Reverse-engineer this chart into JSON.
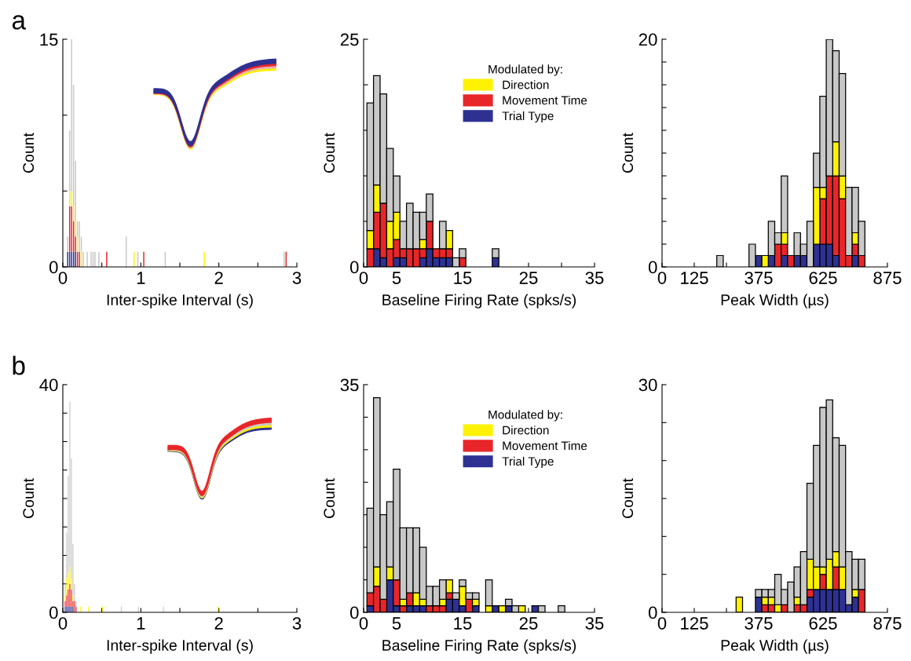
{
  "chart_data": [
    {
      "type": "bar",
      "xlabel": "Inter-spike Interval (s)",
      "ylabel": "Count",
      "annotations": [
        "a"
      ],
      "stacked": true,
      "x": [
        0.0625,
        0.0875,
        0.1125,
        0.1375,
        0.1625,
        0.1875,
        0.2125,
        0.2375,
        0.2625,
        0.3125,
        0.3625,
        0.3875,
        0.4125,
        0.4625,
        0.5625,
        0.8125,
        0.9125,
        0.9625,
        1.0375,
        1.3125,
        1.8125,
        2.8375,
        2.8625
      ],
      "series": [
        {
          "color": "#2e3192",
          "values": [
            1,
            1,
            1,
            1,
            1,
            0,
            0,
            0,
            0,
            0,
            0,
            0,
            0,
            0,
            0,
            0,
            0,
            0,
            0,
            0,
            0,
            0,
            0
          ]
        },
        {
          "color": "#e8262a",
          "values": [
            0,
            3,
            3,
            2,
            1,
            1,
            1,
            0,
            0,
            0,
            0,
            0,
            0,
            0,
            1,
            0,
            0,
            0,
            1,
            0,
            0,
            0,
            1
          ]
        },
        {
          "color": "#fff200",
          "values": [
            0,
            1,
            1,
            1,
            1,
            1,
            0,
            1,
            0,
            0,
            0,
            0,
            0,
            0,
            0,
            0,
            1,
            0,
            0,
            0,
            1,
            0,
            0
          ]
        },
        {
          "color": "#c8c8c8",
          "values": [
            1,
            4,
            10,
            8,
            4,
            1,
            2,
            1,
            1,
            1,
            1,
            1,
            1,
            1,
            0,
            2,
            0,
            1,
            0,
            1,
            0,
            1,
            0
          ]
        }
      ],
      "xlim": [
        0,
        3
      ],
      "xticks": [
        0,
        {
          "value": 0.5,
          "label": null
        },
        1,
        {
          "value": 1.5,
          "label": null
        },
        2,
        {
          "value": 2.5,
          "label": null
        },
        3
      ],
      "ylim": [
        0,
        15
      ],
      "yticks": [
        0,
        {
          "value": 5,
          "label": null
        },
        {
          "value": 10,
          "label": null
        },
        15
      ]
    },
    {
      "type": "bar",
      "xlabel": "Baseline Firing Rate (spks/s)",
      "ylabel": "Count",
      "stacked": true,
      "legend": "top right",
      "legend_title": "Modulated by:",
      "x": [
        1,
        2,
        3,
        4,
        5,
        6,
        7,
        8,
        9,
        10,
        11,
        12,
        13,
        14,
        15,
        16,
        17,
        18,
        19,
        20
      ],
      "series": [
        {
          "name": "Trial Type",
          "color": "#2e3192",
          "values": [
            0,
            2,
            1,
            0,
            1,
            1,
            0,
            0,
            1,
            2,
            1,
            1,
            1,
            0,
            0,
            0,
            0,
            0,
            0,
            1
          ]
        },
        {
          "name": "Movement Time",
          "color": "#e8262a",
          "values": [
            2,
            4,
            6,
            2,
            2,
            1,
            2,
            2,
            1,
            3,
            1,
            1,
            1,
            0,
            1,
            0,
            0,
            0,
            0,
            0
          ]
        },
        {
          "name": "Direction",
          "color": "#fff200",
          "values": [
            2,
            3,
            0,
            3,
            3,
            0,
            0,
            0,
            1,
            0,
            0,
            0,
            2,
            0,
            0,
            0,
            0,
            0,
            0,
            0
          ]
        },
        {
          "color": "#c8c8c8",
          "values": [
            14,
            12,
            12,
            8,
            4,
            3,
            5,
            4,
            3,
            3,
            0,
            3,
            0,
            1,
            1,
            0,
            0,
            0,
            0,
            1
          ]
        }
      ],
      "xlim": [
        0,
        35
      ],
      "xticks": [
        0,
        5,
        {
          "value": 10,
          "label": null
        },
        15,
        {
          "value": 20,
          "label": null
        },
        25,
        {
          "value": 30,
          "label": null
        },
        35
      ],
      "ylim": [
        0,
        25
      ],
      "yticks": [
        0,
        {
          "value": 5,
          "label": null
        },
        {
          "value": 10,
          "label": null
        },
        {
          "value": 15,
          "label": null
        },
        {
          "value": 20,
          "label": null
        },
        25
      ]
    },
    {
      "type": "bar",
      "xlabel": "Peak Width (µs)",
      "ylabel": "Count",
      "stacked": true,
      "x": [
        225,
        250,
        275,
        300,
        325,
        350,
        375,
        400,
        425,
        450,
        475,
        500,
        525,
        550,
        575,
        600,
        625,
        650,
        675,
        700,
        725,
        750,
        775
      ],
      "series": [
        {
          "color": "#2e3192",
          "values": [
            0,
            0,
            0,
            0,
            0,
            0,
            1,
            0,
            1,
            0,
            1,
            0,
            1,
            1,
            0,
            2,
            2,
            2,
            1,
            0,
            0,
            1,
            0
          ]
        },
        {
          "color": "#e8262a",
          "values": [
            0,
            0,
            0,
            0,
            0,
            0,
            0,
            0,
            0,
            2,
            1,
            1,
            0,
            0,
            0,
            0,
            4,
            6,
            7,
            6,
            1,
            1,
            1
          ]
        },
        {
          "color": "#fff200",
          "values": [
            0,
            0,
            0,
            0,
            0,
            0,
            0,
            1,
            0,
            0,
            1,
            0,
            0,
            0,
            0,
            5,
            1,
            0,
            3,
            2,
            0,
            1,
            0
          ]
        },
        {
          "color": "#c8c8c8",
          "values": [
            1,
            0,
            0,
            0,
            0,
            2,
            0,
            0,
            3,
            1,
            5,
            0,
            2,
            1,
            4,
            3,
            8,
            12,
            8,
            9,
            6,
            4,
            3
          ]
        }
      ],
      "xlim": [
        0,
        875
      ],
      "xticks": [
        0,
        125,
        {
          "value": 250,
          "label": null
        },
        375,
        {
          "value": 500,
          "label": null
        },
        625,
        {
          "value": 750,
          "label": null
        },
        875
      ],
      "ylim": [
        0,
        20
      ],
      "yticks": [
        0,
        {
          "value": 2,
          "label": null
        },
        {
          "value": 4,
          "label": null
        },
        {
          "value": 6,
          "label": null
        },
        {
          "value": 8,
          "label": null
        },
        {
          "value": 10,
          "label": null
        },
        {
          "value": 12,
          "label": null
        },
        {
          "value": 14,
          "label": null
        },
        {
          "value": 16,
          "label": null
        },
        {
          "value": 18,
          "label": null
        },
        20
      ]
    },
    {
      "type": "bar",
      "xlabel": "Inter-spike Interval (s)",
      "ylabel": "Count",
      "annotations": [
        "b"
      ],
      "stacked": true,
      "x": [
        0.03,
        0.05,
        0.07,
        0.09,
        0.11,
        0.13,
        0.15,
        0.17,
        0.23,
        0.33,
        0.51,
        0.75,
        0.97,
        1.29,
        1.99
      ],
      "series": [
        {
          "color": "#2e3192",
          "values": [
            1,
            1,
            1,
            1,
            1,
            1,
            0,
            0,
            0,
            0,
            0,
            0,
            0,
            0,
            0
          ]
        },
        {
          "color": "#e8262a",
          "values": [
            1,
            2,
            3,
            4,
            3,
            1,
            2,
            1,
            0,
            0,
            0,
            0,
            0,
            0,
            0
          ]
        },
        {
          "color": "#fff200",
          "values": [
            1,
            3,
            3,
            3,
            2,
            1,
            0,
            0,
            1,
            1,
            1,
            0,
            0,
            0,
            1
          ]
        },
        {
          "color": "#c8c8c8",
          "values": [
            2,
            8,
            17,
            29,
            21,
            9,
            3,
            1,
            0,
            0,
            0,
            1,
            1,
            1,
            0
          ]
        }
      ],
      "xlim": [
        0,
        3
      ],
      "xticks": [
        0,
        {
          "value": 0.5,
          "label": null
        },
        1,
        {
          "value": 1.5,
          "label": null
        },
        2,
        {
          "value": 2.5,
          "label": null
        },
        3
      ],
      "ylim": [
        0,
        40
      ],
      "yticks": [
        0,
        {
          "value": 5,
          "label": null
        },
        {
          "value": 10,
          "label": null
        },
        {
          "value": 15,
          "label": null
        },
        {
          "value": 20,
          "label": null
        },
        {
          "value": 25,
          "label": null
        },
        {
          "value": 30,
          "label": null
        },
        {
          "value": 35,
          "label": null
        },
        40
      ]
    },
    {
      "type": "bar",
      "xlabel": "Baseline Firing Rate (spks/s)",
      "ylabel": "Count",
      "stacked": true,
      "legend": "top right",
      "legend_title": "Modulated by:",
      "x": [
        1,
        2,
        3,
        4,
        5,
        6,
        7,
        8,
        9,
        10,
        11,
        12,
        13,
        14,
        15,
        16,
        17,
        18,
        19,
        20,
        21,
        22,
        23,
        24,
        25,
        26,
        27,
        28,
        29,
        30
      ],
      "series": [
        {
          "name": "Trial Type",
          "color": "#2e3192",
          "values": [
            1,
            0,
            0,
            5,
            1,
            0,
            1,
            1,
            1,
            0,
            0,
            0,
            2,
            2,
            1,
            0,
            1,
            0,
            0,
            1,
            0,
            1,
            0,
            0,
            0,
            1,
            0,
            0,
            0,
            0
          ]
        },
        {
          "name": "Movement Time",
          "color": "#e8262a",
          "values": [
            2,
            4,
            2,
            0,
            4,
            1,
            2,
            0,
            0,
            1,
            1,
            1,
            1,
            0,
            0,
            2,
            0,
            0,
            0,
            0,
            0,
            0,
            0,
            0,
            0,
            0,
            0,
            0,
            0,
            0
          ]
        },
        {
          "name": "Direction",
          "color": "#fff200",
          "values": [
            0,
            3,
            0,
            2,
            0,
            1,
            0,
            2,
            1,
            0,
            0,
            1,
            2,
            0,
            3,
            0,
            1,
            0,
            1,
            0,
            1,
            0,
            0,
            1,
            0,
            0,
            0,
            0,
            0,
            0
          ]
        },
        {
          "color": "#c8c8c8",
          "values": [
            13,
            26,
            13,
            10,
            17,
            11,
            10,
            10,
            8,
            3,
            3,
            3,
            0,
            1,
            1,
            1,
            1,
            0,
            4,
            0,
            0,
            1,
            1,
            0,
            0,
            0,
            1,
            0,
            0,
            1
          ]
        }
      ],
      "xlim": [
        0,
        35
      ],
      "xticks": [
        0,
        5,
        {
          "value": 10,
          "label": null
        },
        15,
        {
          "value": 20,
          "label": null
        },
        25,
        {
          "value": 30,
          "label": null
        },
        35
      ],
      "ylim": [
        0,
        35
      ],
      "yticks": [
        0,
        {
          "value": 5,
          "label": null
        },
        {
          "value": 10,
          "label": null
        },
        {
          "value": 15,
          "label": null
        },
        {
          "value": 20,
          "label": null
        },
        {
          "value": 25,
          "label": null
        },
        {
          "value": 30,
          "label": null
        },
        35
      ]
    },
    {
      "type": "bar",
      "xlabel": "Peak Width (µs)",
      "ylabel": "Count",
      "stacked": true,
      "x": [
        300,
        325,
        350,
        375,
        400,
        425,
        450,
        475,
        500,
        525,
        550,
        575,
        600,
        625,
        650,
        675,
        700,
        725,
        750,
        775
      ],
      "series": [
        {
          "color": "#2e3192",
          "values": [
            0,
            0,
            0,
            2,
            0,
            0,
            0,
            0,
            0,
            0,
            0,
            2,
            3,
            3,
            3,
            3,
            3,
            1,
            2,
            0
          ]
        },
        {
          "color": "#e8262a",
          "values": [
            0,
            0,
            0,
            0,
            1,
            1,
            0,
            1,
            0,
            1,
            1,
            1,
            0,
            2,
            0,
            3,
            0,
            0,
            0,
            3
          ]
        },
        {
          "color": "#fff200",
          "values": [
            2,
            0,
            0,
            0,
            1,
            1,
            1,
            0,
            0,
            1,
            0,
            4,
            3,
            1,
            4,
            2,
            3,
            0,
            1,
            0
          ]
        },
        {
          "color": "#c8c8c8",
          "values": [
            0,
            0,
            0,
            1,
            1,
            1,
            4,
            2,
            4,
            4,
            7,
            10,
            16,
            21,
            21,
            15,
            16,
            7,
            4,
            4
          ]
        }
      ],
      "xlim": [
        0,
        875
      ],
      "xticks": [
        0,
        125,
        {
          "value": 250,
          "label": null
        },
        375,
        {
          "value": 500,
          "label": null
        },
        625,
        {
          "value": 750,
          "label": null
        },
        875
      ],
      "ylim": [
        0,
        30
      ],
      "yticks": [
        0,
        {
          "value": 5,
          "label": null
        },
        {
          "value": 10,
          "label": null
        },
        {
          "value": 15,
          "label": null
        },
        {
          "value": 20,
          "label": null
        },
        {
          "value": 25,
          "label": null
        },
        30
      ]
    }
  ]
}
